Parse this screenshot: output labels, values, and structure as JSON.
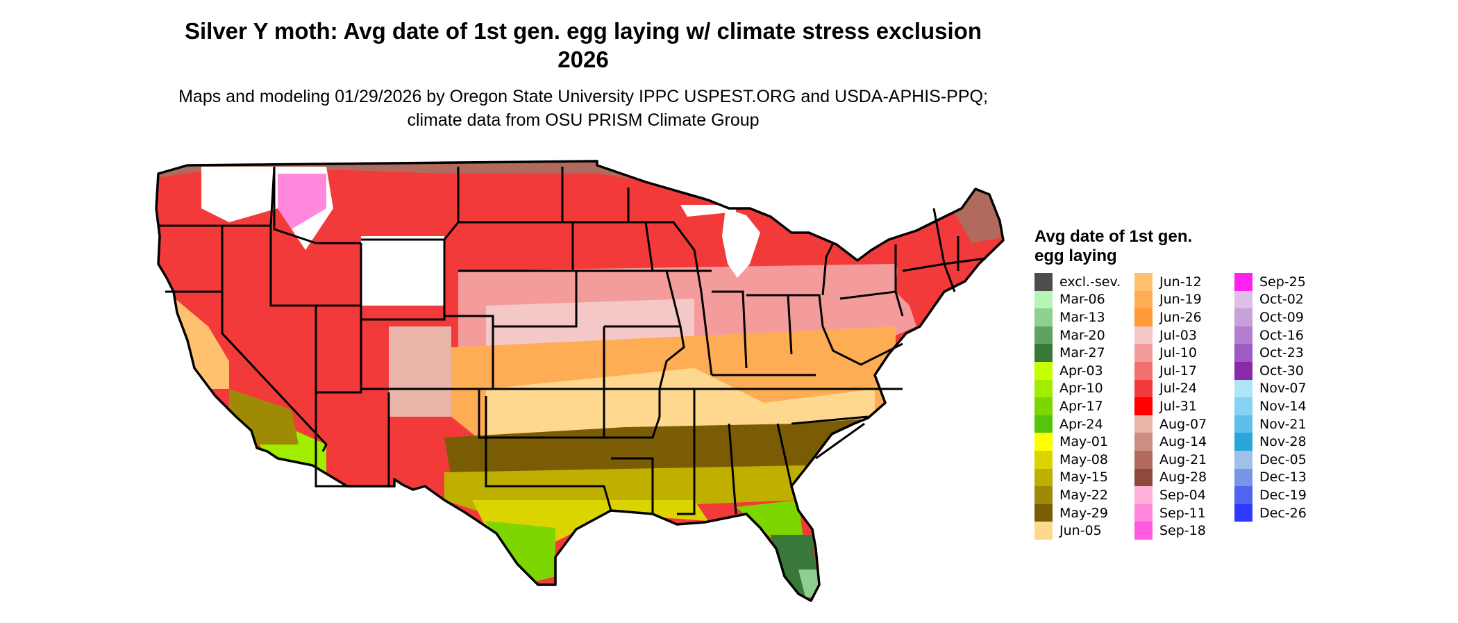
{
  "title": "Silver Y moth: Avg date of 1st gen. egg laying w/ climate stress exclusion 2026",
  "subtitle": "Maps and modeling 01/29/2026 by Oregon State University IPPC USPEST.ORG and USDA-APHIS-PPQ; climate data from OSU PRISM Climate Group",
  "legend": {
    "title": "Avg date of 1st gen. egg laying",
    "columns": [
      [
        {
          "label": "excl.-sev.",
          "color": "#4d4d4d"
        },
        {
          "label": "Mar-06",
          "color": "#b5f5b5"
        },
        {
          "label": "Mar-13",
          "color": "#8fcf8f"
        },
        {
          "label": "Mar-20",
          "color": "#5fa35f"
        },
        {
          "label": "Mar-27",
          "color": "#3a783a"
        },
        {
          "label": "Apr-03",
          "color": "#c8ff00"
        },
        {
          "label": "Apr-10",
          "color": "#a2ec00"
        },
        {
          "label": "Apr-17",
          "color": "#7ed600"
        },
        {
          "label": "Apr-24",
          "color": "#55c40a"
        },
        {
          "label": "May-01",
          "color": "#ffff00"
        },
        {
          "label": "May-08",
          "color": "#dcd400"
        },
        {
          "label": "May-15",
          "color": "#bfb000"
        },
        {
          "label": "May-22",
          "color": "#9e8a05"
        },
        {
          "label": "May-29",
          "color": "#7a5c05"
        },
        {
          "label": "Jun-05",
          "color": "#ffd890"
        }
      ],
      [
        {
          "label": "Jun-12",
          "color": "#ffc070"
        },
        {
          "label": "Jun-19",
          "color": "#ffad55"
        },
        {
          "label": "Jun-26",
          "color": "#ff9a38"
        },
        {
          "label": "Jul-03",
          "color": "#f5c8c8"
        },
        {
          "label": "Jul-10",
          "color": "#f49c9c"
        },
        {
          "label": "Jul-17",
          "color": "#f27070"
        },
        {
          "label": "Jul-24",
          "color": "#f23a3a"
        },
        {
          "label": "Jul-31",
          "color": "#ff0000"
        },
        {
          "label": "Aug-07",
          "color": "#e8b5a8"
        },
        {
          "label": "Aug-14",
          "color": "#cc8e84"
        },
        {
          "label": "Aug-21",
          "color": "#b06a5e"
        },
        {
          "label": "Aug-28",
          "color": "#8e4a3a"
        },
        {
          "label": "Sep-04",
          "color": "#ffb0d8"
        },
        {
          "label": "Sep-11",
          "color": "#ff88dc"
        },
        {
          "label": "Sep-18",
          "color": "#ff5ae0"
        }
      ],
      [
        {
          "label": "Sep-25",
          "color": "#ff22ee"
        },
        {
          "label": "Oct-02",
          "color": "#dcc0e6"
        },
        {
          "label": "Oct-09",
          "color": "#c8a0dc"
        },
        {
          "label": "Oct-16",
          "color": "#b47ed0"
        },
        {
          "label": "Oct-23",
          "color": "#a05ac4"
        },
        {
          "label": "Oct-30",
          "color": "#8a2aa8"
        },
        {
          "label": "Nov-07",
          "color": "#aee6f6"
        },
        {
          "label": "Nov-14",
          "color": "#86d2f2"
        },
        {
          "label": "Nov-21",
          "color": "#5ec0ea"
        },
        {
          "label": "Nov-28",
          "color": "#2aa6dc"
        },
        {
          "label": "Dec-05",
          "color": "#a0c0e8"
        },
        {
          "label": "Dec-13",
          "color": "#7896e8"
        },
        {
          "label": "Dec-19",
          "color": "#5064f0"
        },
        {
          "label": "Dec-26",
          "color": "#2a3aff"
        }
      ]
    ]
  }
}
